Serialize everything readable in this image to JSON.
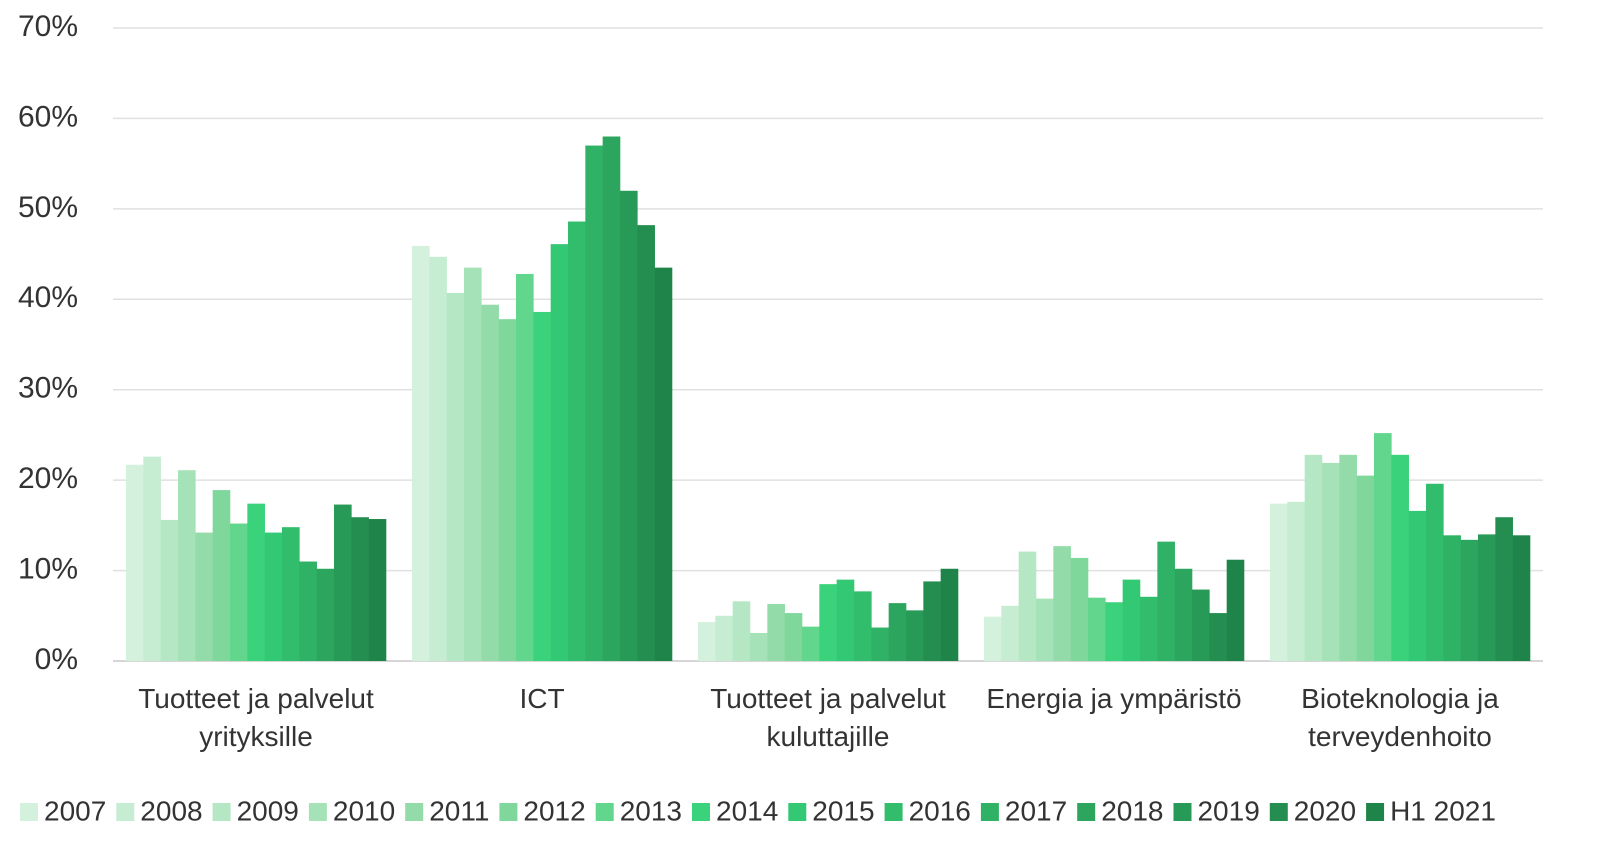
{
  "chart_data": {
    "type": "bar",
    "categories": [
      "Tuotteet ja palvelut yrityksille",
      "ICT",
      "Tuotteet ja palvelut kuluttajille",
      "Energia ja ympäristö",
      "Bioteknologia ja terveydenhoito"
    ],
    "series": [
      {
        "name": "2007",
        "color": "#d4f1dd",
        "values": [
          21.7,
          45.9,
          4.3,
          4.9,
          17.4
        ]
      },
      {
        "name": "2008",
        "color": "#c6edd2",
        "values": [
          22.6,
          44.7,
          5.0,
          6.1,
          17.6
        ]
      },
      {
        "name": "2009",
        "color": "#b5e7c4",
        "values": [
          15.6,
          40.7,
          6.6,
          12.1,
          22.8
        ]
      },
      {
        "name": "2010",
        "color": "#a5e2b7",
        "values": [
          21.1,
          43.5,
          3.1,
          6.9,
          21.9
        ]
      },
      {
        "name": "2011",
        "color": "#93dca9",
        "values": [
          14.2,
          39.4,
          6.3,
          12.7,
          22.8
        ]
      },
      {
        "name": "2012",
        "color": "#80d79b",
        "values": [
          18.9,
          37.8,
          5.3,
          11.4,
          20.5
        ]
      },
      {
        "name": "2013",
        "color": "#62d68c",
        "values": [
          15.2,
          42.8,
          3.8,
          7.0,
          25.2
        ]
      },
      {
        "name": "2014",
        "color": "#3ad37b",
        "values": [
          17.4,
          38.6,
          8.5,
          6.5,
          22.8
        ]
      },
      {
        "name": "2015",
        "color": "#33c873",
        "values": [
          14.2,
          46.1,
          9.0,
          9.0,
          16.6
        ]
      },
      {
        "name": "2016",
        "color": "#31bd6c",
        "values": [
          14.8,
          48.6,
          7.7,
          7.1,
          19.6
        ]
      },
      {
        "name": "2017",
        "color": "#2fb265",
        "values": [
          11.0,
          57.0,
          3.7,
          13.2,
          13.9
        ]
      },
      {
        "name": "2018",
        "color": "#2ca55e",
        "values": [
          10.2,
          58.0,
          6.4,
          10.2,
          13.4
        ]
      },
      {
        "name": "2019",
        "color": "#289a57",
        "values": [
          17.3,
          52.0,
          5.6,
          7.9,
          14.0
        ]
      },
      {
        "name": "2020",
        "color": "#248e50",
        "values": [
          15.9,
          48.2,
          8.8,
          5.3,
          15.9
        ]
      },
      {
        "name": "H1 2021",
        "color": "#1f8449",
        "values": [
          15.7,
          43.5,
          10.2,
          11.2,
          13.9
        ]
      }
    ],
    "ylim": [
      0,
      70
    ],
    "yticks": [
      {
        "value": 0,
        "label": "0%"
      },
      {
        "value": 10,
        "label": "10%"
      },
      {
        "value": 20,
        "label": "20%"
      },
      {
        "value": 30,
        "label": "30%"
      },
      {
        "value": 40,
        "label": "40%"
      },
      {
        "value": 50,
        "label": "50%"
      },
      {
        "value": 60,
        "label": "60%"
      },
      {
        "value": 70,
        "label": "70%"
      }
    ],
    "grid": true,
    "legend": "bottom"
  }
}
